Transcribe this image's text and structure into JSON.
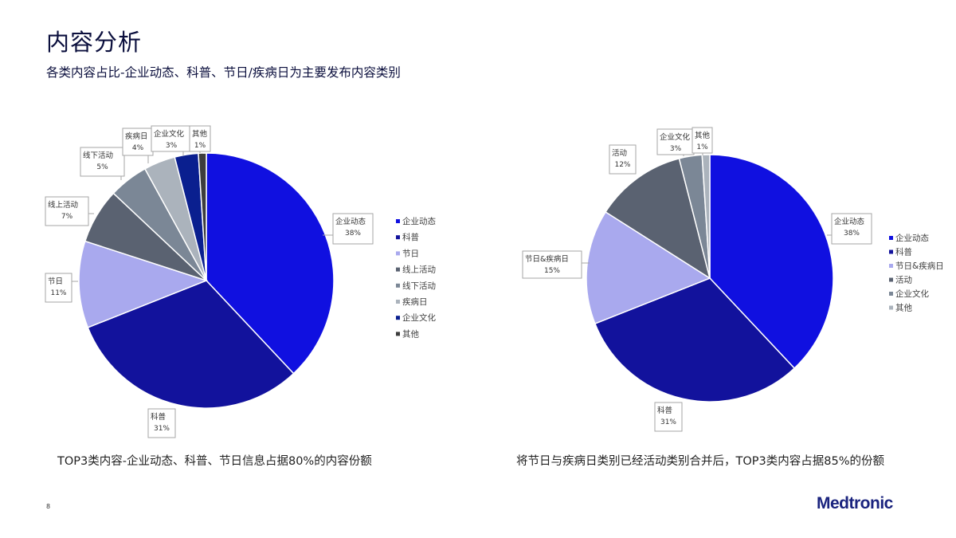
{
  "header": {
    "title": "内容分析",
    "subtitle": "各类内容占比-企业动态、科普、节日/疾病日为主要发布内容类别"
  },
  "chart_data": [
    {
      "type": "pie",
      "categories": [
        "企业动态",
        "科普",
        "节日",
        "线上活动",
        "线下活动",
        "疾病日",
        "企业文化",
        "其他"
      ],
      "values": [
        38,
        31,
        11,
        7,
        5,
        4,
        3,
        1
      ],
      "value_labels": [
        "38%",
        "31%",
        "11%",
        "7%",
        "5%",
        "4%",
        "3%",
        "1%"
      ],
      "callout_labels": [
        "企业动态",
        "科普",
        "节日",
        "线上活动",
        "线下活动",
        "疾病日",
        "企业文化",
        "其他"
      ],
      "colors": [
        "#1010e0",
        "#12129c",
        "#a9a9ee",
        "#5a6271",
        "#7b8796",
        "#abb3bc",
        "#0a1f8f",
        "#3d3d3d"
      ],
      "legend": [
        "企业动态",
        "科普",
        "节日",
        "线上活动",
        "线下活动",
        "疾病日",
        "企业文化",
        "其他"
      ],
      "legend_placement": "right"
    },
    {
      "type": "pie",
      "categories": [
        "企业动态",
        "科普",
        "节日&疾病日",
        "活动",
        "企业文化",
        "其他"
      ],
      "values": [
        38,
        31,
        15,
        12,
        3,
        1
      ],
      "value_labels": [
        "38%",
        "31%",
        "15%",
        "12%",
        "3%",
        "1%"
      ],
      "callout_labels": [
        "企业动态",
        "科普",
        "节日&疾病日",
        "活动",
        "企业文化",
        "其他"
      ],
      "colors": [
        "#1010e0",
        "#12129c",
        "#a9a9ee",
        "#5a6271",
        "#7b8796",
        "#abb3bc"
      ],
      "legend": [
        "企业动态",
        "科普",
        "节日&疾病日",
        "活动",
        "企业文化",
        "其他"
      ],
      "legend_placement": "right"
    }
  ],
  "notes": {
    "left": "TOP3类内容-企业动态、科普、节日信息占据80%的内容份额",
    "right": "将节日与疾病日类别已经活动类别合并后，TOP3类内容占据85%的份额"
  },
  "footer": {
    "page_number": "8",
    "brand": "Medtronic"
  }
}
